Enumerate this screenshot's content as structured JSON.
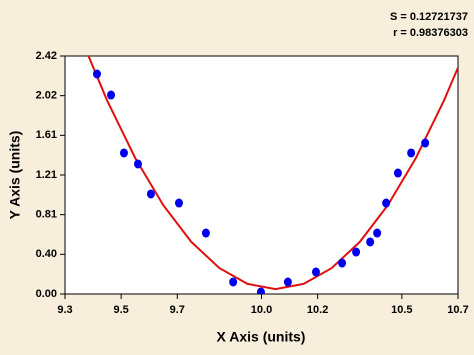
{
  "chart_data": {
    "type": "scatter",
    "annotations": [
      "S = 0.12721737",
      "r = 0.98376303"
    ],
    "xlabel": "X Axis (units)",
    "ylabel": "Y Axis (units)",
    "xlim": [
      9.3,
      10.7
    ],
    "ylim": [
      0,
      2.42
    ],
    "xticks": [
      9.3,
      9.5,
      9.7,
      {
        "value": 10,
        "label": "10.0"
      },
      10.2,
      10.5,
      10.7
    ],
    "yticks": [
      {
        "value": 0,
        "label": "0.00"
      },
      {
        "value": 0.4033,
        "label": "0.40"
      },
      {
        "value": 0.8067,
        "label": "0.81"
      },
      1.21,
      {
        "value": 1.6133,
        "label": "1.61"
      },
      {
        "value": 2.0167,
        "label": "2.02"
      },
      2.42
    ],
    "color": "#0000ee",
    "x": [
      9.414,
      9.464,
      9.51,
      9.56,
      9.606,
      9.706,
      9.802,
      9.899,
      9.998,
      10.094,
      10.194,
      10.287,
      10.337,
      10.387,
      10.412,
      10.444,
      10.486,
      10.533,
      10.583
    ],
    "values": [
      2.237,
      2.023,
      1.434,
      1.322,
      1.017,
      0.925,
      0.62,
      0.122,
      0.02,
      0.122,
      0.224,
      0.315,
      0.427,
      0.529,
      0.62,
      0.925,
      1.23,
      1.434,
      1.535
    ],
    "fit": {
      "color": "#e01010",
      "x": [
        9.37,
        9.45,
        9.55,
        9.65,
        9.75,
        9.85,
        9.95,
        10.05,
        10.15,
        10.25,
        10.35,
        10.45,
        10.55,
        10.65,
        10.7
      ],
      "y": [
        2.515,
        1.969,
        1.383,
        0.903,
        0.53,
        0.263,
        0.103,
        0.05,
        0.103,
        0.263,
        0.53,
        0.903,
        1.383,
        1.969,
        2.302
      ]
    }
  }
}
